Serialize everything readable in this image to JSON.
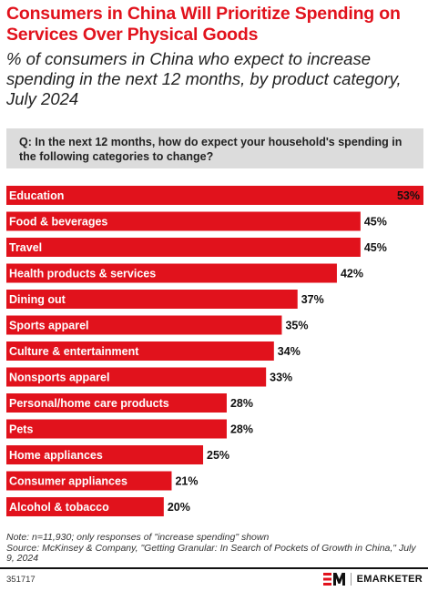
{
  "header": {
    "title": "Consumers in China Will Prioritize Spending on Services Over Physical Goods",
    "subtitle": "% of consumers in China who expect to increase spending in the next 12 months, by product category, July 2024"
  },
  "question": "Q: In the next 12 months, how do expect your household's spending in the following categories to change?",
  "chart_data": {
    "type": "bar",
    "orientation": "horizontal",
    "categories": [
      "Education",
      "Food & beverages",
      "Travel",
      "Health products & services",
      "Dining out",
      "Sports apparel",
      "Culture & entertainment",
      "Nonsports apparel",
      "Personal/home care products",
      "Pets",
      "Home appliances",
      "Consumer appliances",
      "Alcohol & tobacco"
    ],
    "values": [
      53,
      45,
      45,
      42,
      37,
      35,
      34,
      33,
      28,
      28,
      25,
      21,
      20
    ],
    "value_labels": [
      "53%",
      "45%",
      "45%",
      "42%",
      "37%",
      "35%",
      "34%",
      "33%",
      "28%",
      "28%",
      "25%",
      "21%",
      "20%"
    ],
    "xlim": [
      0,
      53
    ],
    "bar_color": "#e1121c",
    "grid": false,
    "legend": "none"
  },
  "footnote": {
    "note": "Note: n=11,930; only responses of \"increase spending\" shown",
    "source": "Source: McKinsey & Company, \"Getting Granular: In Search of Pockets of Growth in China,\" July 9, 2024"
  },
  "footer": {
    "chart_id": "351717",
    "brand": "EMARKETER",
    "logo_icon": "em-logo-icon",
    "brand_color": "#e1121c"
  }
}
